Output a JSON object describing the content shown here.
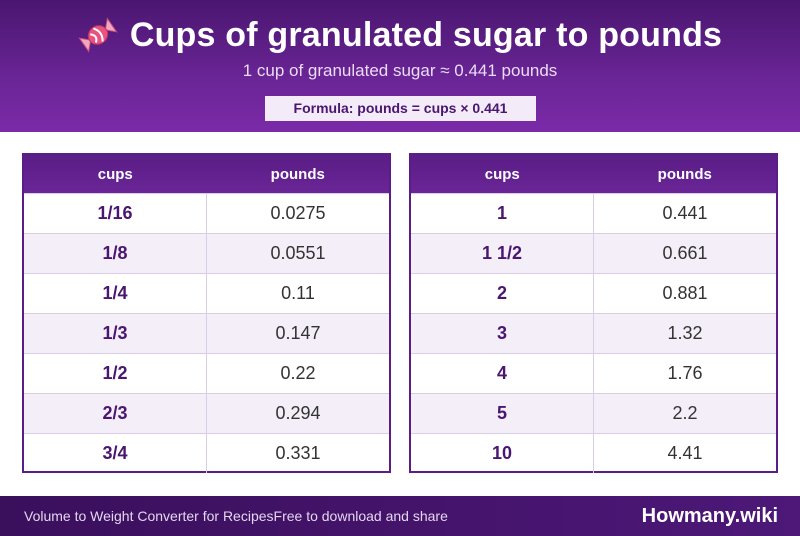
{
  "header": {
    "title": "Cups of granulated sugar to pounds",
    "subtitle": "1 cup of granulated sugar ≈ 0.441 pounds",
    "formula": "Formula: pounds = cups × 0.441",
    "icon": "candy-icon"
  },
  "table_left": {
    "headers": [
      "cups",
      "pounds"
    ],
    "rows": [
      {
        "cups": "1/16",
        "pounds": "0.0275"
      },
      {
        "cups": "1/8",
        "pounds": "0.0551"
      },
      {
        "cups": "1/4",
        "pounds": "0.11"
      },
      {
        "cups": "1/3",
        "pounds": "0.147"
      },
      {
        "cups": "1/2",
        "pounds": "0.22"
      },
      {
        "cups": "2/3",
        "pounds": "0.294"
      },
      {
        "cups": "3/4",
        "pounds": "0.331"
      }
    ]
  },
  "table_right": {
    "headers": [
      "cups",
      "pounds"
    ],
    "rows": [
      {
        "cups": "1",
        "pounds": "0.441"
      },
      {
        "cups": "1 1/2",
        "pounds": "0.661"
      },
      {
        "cups": "2",
        "pounds": "0.881"
      },
      {
        "cups": "3",
        "pounds": "1.32"
      },
      {
        "cups": "4",
        "pounds": "1.76"
      },
      {
        "cups": "5",
        "pounds": "2.2"
      },
      {
        "cups": "10",
        "pounds": "4.41"
      }
    ]
  },
  "footer": {
    "left_text": "Volume to Weight Converter for Recipes",
    "mid_text": "Free to download and share",
    "brand": "Howmany.wiki"
  },
  "colors": {
    "accent": "#5a1d86",
    "header_dark": "#4a1670",
    "row_alt": "#f3eef8"
  }
}
